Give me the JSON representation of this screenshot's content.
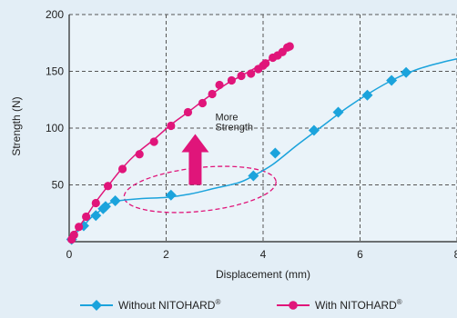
{
  "chart_data": {
    "type": "line",
    "xlabel": "Displacement (mm)",
    "ylabel": "Strength (N)",
    "xlim": [
      0,
      8
    ],
    "ylim": [
      0,
      200
    ],
    "x_ticks": [
      0,
      2,
      4,
      6,
      8
    ],
    "y_ticks": [
      50,
      100,
      150,
      200
    ],
    "grid": "dashed",
    "series": [
      {
        "name": "Without NITOHARD",
        "name_superscript": "®",
        "color": "#1ba3dc",
        "marker": "diamond",
        "points": [
          [
            0.0,
            0
          ],
          [
            0.1,
            6
          ],
          [
            0.3,
            14
          ],
          [
            0.4,
            19
          ],
          [
            0.5,
            23
          ],
          [
            0.6,
            26
          ],
          [
            0.7,
            30
          ],
          [
            0.8,
            33
          ],
          [
            0.9,
            35
          ],
          [
            1.0,
            36
          ],
          [
            1.5,
            38
          ],
          [
            2.0,
            39
          ],
          [
            2.5,
            42
          ],
          [
            3.0,
            47
          ],
          [
            3.5,
            52
          ],
          [
            3.8,
            58
          ],
          [
            4.2,
            68
          ],
          [
            4.7,
            85
          ],
          [
            5.2,
            101
          ],
          [
            5.7,
            117
          ],
          [
            6.2,
            131
          ],
          [
            6.7,
            143
          ],
          [
            7.2,
            152
          ],
          [
            7.7,
            158
          ],
          [
            8.0,
            161
          ]
        ],
        "markers": [
          [
            0.05,
            2
          ],
          [
            0.3,
            14
          ],
          [
            0.55,
            23
          ],
          [
            0.7,
            29
          ],
          [
            0.75,
            31
          ],
          [
            0.95,
            36
          ],
          [
            2.1,
            41
          ],
          [
            3.8,
            58
          ],
          [
            4.25,
            78
          ],
          [
            5.05,
            98
          ],
          [
            5.55,
            114
          ],
          [
            6.15,
            129
          ],
          [
            6.65,
            142
          ],
          [
            6.95,
            149
          ]
        ]
      },
      {
        "name": "With NITOHARD",
        "name_superscript": "®",
        "color": "#e0157a",
        "marker": "circle",
        "points": [
          [
            0.0,
            0
          ],
          [
            0.05,
            2
          ],
          [
            0.1,
            7
          ],
          [
            0.2,
            13
          ],
          [
            0.35,
            22
          ],
          [
            0.55,
            35
          ],
          [
            0.8,
            49
          ],
          [
            1.1,
            65
          ],
          [
            1.4,
            78
          ],
          [
            1.75,
            90
          ],
          [
            2.1,
            103
          ],
          [
            2.45,
            114
          ],
          [
            2.85,
            127
          ],
          [
            3.25,
            139
          ],
          [
            3.55,
            146
          ],
          [
            3.8,
            152
          ],
          [
            4.0,
            157
          ],
          [
            4.2,
            162
          ],
          [
            4.4,
            168
          ],
          [
            4.55,
            172
          ]
        ],
        "markers": [
          [
            0.05,
            2
          ],
          [
            0.1,
            6
          ],
          [
            0.2,
            13
          ],
          [
            0.35,
            22
          ],
          [
            0.55,
            34
          ],
          [
            0.8,
            49
          ],
          [
            1.1,
            64
          ],
          [
            1.45,
            77
          ],
          [
            1.75,
            88
          ],
          [
            2.1,
            102
          ],
          [
            2.45,
            114
          ],
          [
            2.75,
            122
          ],
          [
            2.95,
            130
          ],
          [
            3.1,
            138
          ],
          [
            3.35,
            142
          ],
          [
            3.55,
            146
          ],
          [
            3.75,
            148
          ],
          [
            3.9,
            152
          ],
          [
            4.0,
            155
          ],
          [
            4.05,
            157
          ],
          [
            4.2,
            162
          ],
          [
            4.3,
            164
          ],
          [
            4.4,
            167
          ],
          [
            4.5,
            171
          ],
          [
            4.55,
            172
          ]
        ]
      }
    ],
    "annotation": {
      "text_line1": "More",
      "text_line2": "Strength",
      "arrow_color": "#e0157a",
      "arrow_at": [
        2.6,
        90
      ],
      "highlight_ellipse_color": "#e0157a"
    },
    "legend_placement": "bottom"
  }
}
